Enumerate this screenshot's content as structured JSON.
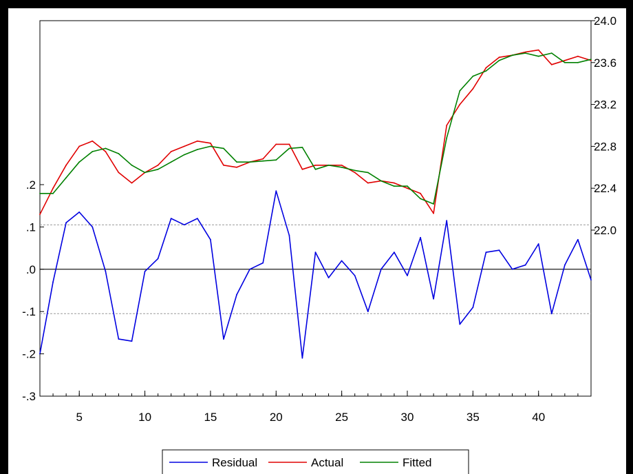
{
  "chart_data": {
    "type": "line",
    "title": "",
    "xlabel": "",
    "ylabel_left": "",
    "ylabel_right": "",
    "x": [
      2,
      3,
      4,
      5,
      6,
      7,
      8,
      9,
      10,
      11,
      12,
      13,
      14,
      15,
      16,
      17,
      18,
      19,
      20,
      21,
      22,
      23,
      24,
      25,
      26,
      27,
      28,
      29,
      30,
      31,
      32,
      33,
      34,
      35,
      36,
      37,
      38,
      39,
      40,
      41,
      42,
      43,
      44
    ],
    "x_ticks": [
      5,
      10,
      15,
      20,
      25,
      30,
      35,
      40
    ],
    "x_tick_labels": [
      "5",
      "10",
      "15",
      "20",
      "25",
      "30",
      "35",
      "40"
    ],
    "xlim": [
      2,
      44
    ],
    "left_axis": {
      "ylim": [
        -0.3,
        0.2
      ],
      "ticks": [
        0.2,
        0.1,
        0.0,
        -0.1,
        -0.2,
        -0.3
      ],
      "tick_labels": [
        ".2",
        ".1",
        ".0",
        "-.1",
        "-.2",
        "-.3"
      ]
    },
    "right_axis": {
      "ylim": [
        22.0,
        24.0
      ],
      "ticks": [
        24.0,
        23.6,
        23.2,
        22.8,
        22.4,
        22.0
      ],
      "tick_labels": [
        "24.0",
        "23.6",
        "23.2",
        "22.8",
        "22.4",
        "22.0"
      ]
    },
    "reference_lines": {
      "zero": 0.0,
      "upper": 0.105,
      "lower": -0.105
    },
    "series": [
      {
        "name": "Residual",
        "axis": "left",
        "color": "#0000e0",
        "values": [
          -0.2,
          -0.03,
          0.11,
          0.135,
          0.1,
          -0.005,
          -0.165,
          -0.17,
          -0.005,
          0.025,
          0.12,
          0.105,
          0.12,
          0.07,
          -0.165,
          -0.06,
          0.0,
          0.015,
          0.185,
          0.08,
          -0.21,
          0.04,
          -0.02,
          0.02,
          -0.015,
          -0.1,
          0.0,
          0.04,
          -0.015,
          0.075,
          -0.07,
          0.115,
          -0.13,
          -0.09,
          0.04,
          0.045,
          0.0,
          0.01,
          0.06,
          -0.105,
          0.01,
          0.07,
          -0.025
        ]
      },
      {
        "name": "Actual",
        "axis": "right",
        "color": "#e00000",
        "values": [
          22.15,
          22.4,
          22.62,
          22.8,
          22.85,
          22.75,
          22.55,
          22.45,
          22.55,
          22.62,
          22.75,
          22.8,
          22.85,
          22.83,
          22.62,
          22.6,
          22.65,
          22.68,
          22.82,
          22.82,
          22.58,
          22.62,
          22.62,
          22.62,
          22.55,
          22.45,
          22.47,
          22.45,
          22.4,
          22.35,
          22.16,
          23.0,
          23.2,
          23.35,
          23.55,
          23.65,
          23.67,
          23.7,
          23.72,
          23.58,
          23.62,
          23.66,
          23.62
        ]
      },
      {
        "name": "Fitted",
        "axis": "right",
        "color": "#008000",
        "values": [
          22.35,
          22.35,
          22.5,
          22.65,
          22.75,
          22.78,
          22.73,
          22.62,
          22.55,
          22.58,
          22.65,
          22.72,
          22.77,
          22.8,
          22.78,
          22.65,
          22.65,
          22.66,
          22.67,
          22.78,
          22.79,
          22.58,
          22.62,
          22.6,
          22.57,
          22.55,
          22.47,
          22.42,
          22.42,
          22.3,
          22.25,
          22.88,
          23.33,
          23.47,
          23.52,
          23.62,
          23.67,
          23.69,
          23.66,
          23.69,
          23.6,
          23.6,
          23.63
        ]
      }
    ],
    "legend": {
      "placement": "bottom-center",
      "entries": [
        "Residual",
        "Actual",
        "Fitted"
      ]
    }
  }
}
